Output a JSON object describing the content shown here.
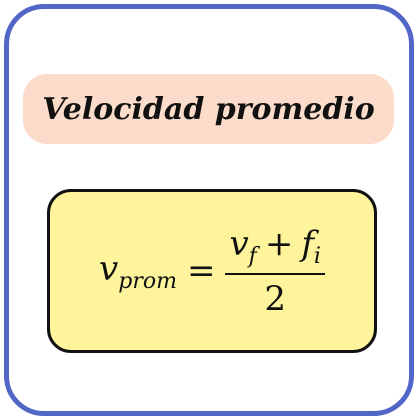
{
  "title": "Velocidad promedio",
  "formula": {
    "lhs_var": "v",
    "lhs_sub": "prom",
    "equals": "=",
    "num_var1": "v",
    "num_sub1": "f",
    "num_op": "+",
    "num_var2": "f",
    "num_sub2": "i",
    "denominator": "2"
  },
  "colors": {
    "border": "#5266c8",
    "title_bg": "#fbdccb",
    "formula_bg": "#fdf49c"
  }
}
